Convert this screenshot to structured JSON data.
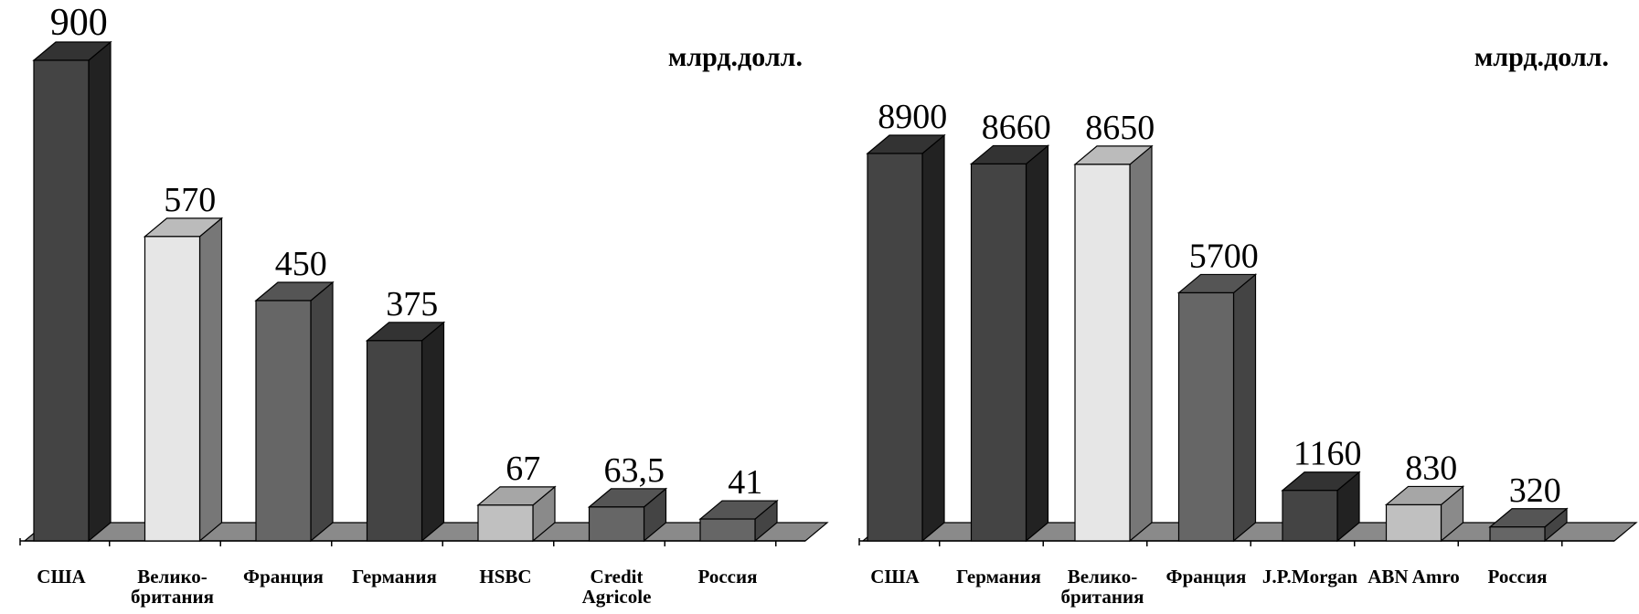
{
  "chart_data": [
    {
      "type": "bar",
      "unit_label": "млрд.долл.",
      "categories": [
        "США",
        "Велико-\nбритания",
        "Франция",
        "Германия",
        "HSBC",
        "Credit\nAgricole",
        "Россия"
      ],
      "values": [
        900,
        570,
        450,
        375,
        67,
        63.5,
        41
      ],
      "value_labels": [
        "900",
        "570",
        "450",
        "375",
        "67",
        "63,5",
        "41"
      ],
      "bar_styles": [
        "dark",
        "light",
        "medium",
        "dark",
        "lighter",
        "medium",
        "medium"
      ],
      "ylim": [
        0,
        900
      ]
    },
    {
      "type": "bar",
      "unit_label": "млрд.долл.",
      "categories": [
        "США",
        "Германия",
        "Велико-\nбритания",
        "Франция",
        "J.P.Morgan",
        "ABN Amro",
        "Россия"
      ],
      "values": [
        8900,
        8660,
        8650,
        5700,
        1160,
        830,
        320
      ],
      "value_labels": [
        "8900",
        "8660",
        "8650",
        "5700",
        "1160",
        "830",
        "320"
      ],
      "bar_styles": [
        "dark",
        "dark",
        "light",
        "medium",
        "dark",
        "lighter",
        "medium"
      ],
      "ylim": [
        0,
        8900
      ]
    }
  ],
  "colors": {
    "dark": {
      "front": "#444444",
      "side": "#222222",
      "top": "#333333"
    },
    "light": {
      "front": "#e6e6e6",
      "side": "#777777",
      "top": "#bbbbbb"
    },
    "medium": {
      "front": "#666666",
      "side": "#444444",
      "top": "#555555"
    },
    "lighter": {
      "front": "#c0c0c0",
      "side": "#8a8a8a",
      "top": "#a6a6a6"
    },
    "floor": "#8a8a8a"
  }
}
